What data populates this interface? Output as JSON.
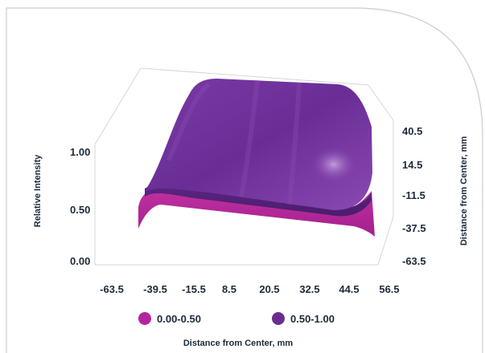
{
  "chart_data": {
    "type": "surface",
    "title": "",
    "zlabel": "Relative Intensity",
    "xlabel": "Distance from Center, mm",
    "ylabel": "Distance from Center, mm",
    "z_ticks": [
      "1.00",
      "0.50",
      "0.00"
    ],
    "x_ticks": [
      "-63.5",
      "-39.5",
      "-15.5",
      "8.5",
      "20.5",
      "32.5",
      "44.5",
      "56.5"
    ],
    "y_ticks": [
      "40.5",
      "14.5",
      "-11.5",
      "-37.5",
      "-63.5"
    ],
    "zlim": [
      0,
      1
    ],
    "surface_shape": "flat-top plateau near 1.00 that rolls off toward the edges",
    "legend": [
      {
        "label": "0.00-0.50",
        "color": "#b3259f"
      },
      {
        "label": "0.50-1.00",
        "color": "#6b2c91"
      }
    ],
    "colors": {
      "low_band": "#b3259f",
      "high_band": "#6b2c91",
      "frame": "#cfd3d8",
      "text": "#1d2a3a"
    }
  }
}
